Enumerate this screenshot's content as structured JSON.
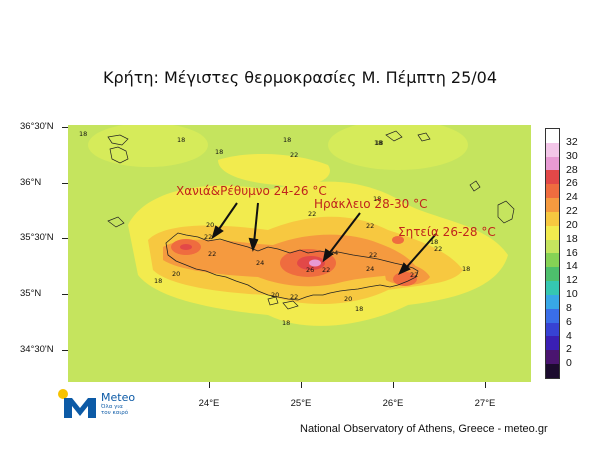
{
  "title": "Κρήτη: Μέγιστες θερμοκρασίες  Μ. Πέμπτη 25/04",
  "lat_labels": [
    "36°30'N",
    "36°N",
    "35°30'N",
    "35°N",
    "34°30'N"
  ],
  "lon_labels": [
    "24°E",
    "25°E",
    "26°E",
    "27°E"
  ],
  "colorbar": {
    "labels": [
      "32",
      "30",
      "28",
      "26",
      "24",
      "22",
      "20",
      "18",
      "16",
      "14",
      "12",
      "10",
      "8",
      "6",
      "4",
      "2",
      "0"
    ],
    "colors": [
      "#ffffff",
      "#f3c6e8",
      "#e89ad3",
      "#e24848",
      "#ef6c3f",
      "#f59a3f",
      "#f7c840",
      "#f2eb4e",
      "#c5e45e",
      "#86d255",
      "#4dbf6c",
      "#35c7b1",
      "#38a8e6",
      "#3a6ee8",
      "#3742d4",
      "#3a1fb4",
      "#4a1570",
      "#1c0b2e"
    ]
  },
  "annotations": {
    "chania": "Χανιά&Ρέθυμνο 24-26 °C",
    "heraklion": "Ηράκλειο 28-30 °C",
    "sitia": "Σητεία 26-28 °C"
  },
  "point_labels": [
    "18",
    "18",
    "18",
    "18",
    "18",
    "20",
    "22",
    "22",
    "22",
    "22",
    "22",
    "20",
    "24",
    "24",
    "26",
    "22",
    "22",
    "24",
    "20",
    "18",
    "22",
    "22",
    "20",
    "18",
    "18",
    "22",
    "18",
    "18",
    "18",
    "18"
  ],
  "logo": {
    "name": "Meteo",
    "tagline_1": "Όλα για",
    "tagline_2": "τον καιρό"
  },
  "credit": "National Observatory of Athens, Greece - meteo.gr"
}
